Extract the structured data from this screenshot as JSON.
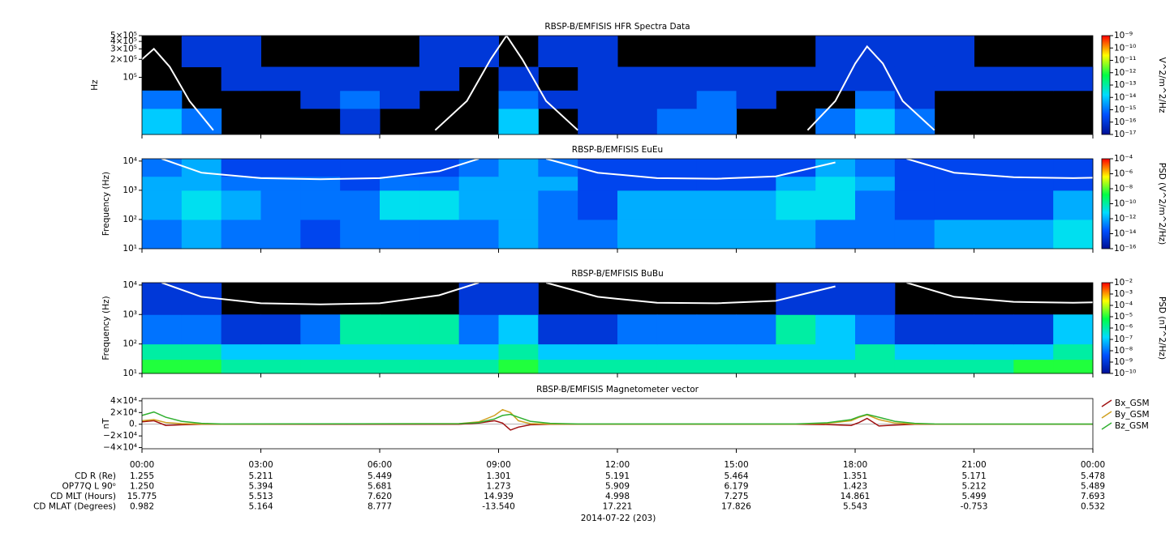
{
  "chart_data": [
    {
      "type": "spectrogram",
      "title": "RBSP-B/EMFISIS  HFR Spectra Data",
      "ylabel": "Hz",
      "ylog": true,
      "ylim": [
        11000,
        500000
      ],
      "yticks": [
        {
          "value": 500000,
          "label": "5×10⁵"
        },
        {
          "value": 400000,
          "label": "4×10⁵"
        },
        {
          "value": 300000,
          "label": "3×10⁵"
        },
        {
          "value": 200000,
          "label": "2×10⁵"
        },
        {
          "value": 100000,
          "label": "10⁵"
        }
      ],
      "zlabel": "V^2/m^2/Hz",
      "zlim": [
        1e-17,
        1e-09
      ],
      "zticks": [
        {
          "value": 1e-09,
          "label": "10⁻⁹"
        },
        {
          "value": 1e-10,
          "label": "10⁻¹⁰"
        },
        {
          "value": 1e-11,
          "label": "10⁻¹¹"
        },
        {
          "value": 1e-12,
          "label": "10⁻¹²"
        },
        {
          "value": 1e-13,
          "label": "10⁻¹³"
        },
        {
          "value": 1e-14,
          "label": "10⁻¹⁴"
        },
        {
          "value": 1e-15,
          "label": "10⁻¹⁵"
        },
        {
          "value": 1e-16,
          "label": "10⁻¹⁶"
        },
        {
          "value": 1e-17,
          "label": "10⁻¹⁷"
        }
      ],
      "xbins": [
        0,
        1,
        2,
        3,
        4,
        5,
        6,
        7,
        8,
        9,
        10,
        11,
        12,
        13,
        14,
        15,
        16,
        17,
        18,
        19,
        20,
        21,
        22,
        23,
        24
      ],
      "ybins": [
        11000,
        30000,
        60000,
        150000,
        500000
      ],
      "z": [
        [
          1e-14,
          1e-15,
          null,
          null,
          null,
          1e-16,
          null,
          null,
          null,
          1e-14,
          null,
          1e-16,
          1e-16,
          1e-15,
          1e-15,
          null,
          null,
          1e-15,
          1e-14,
          1e-15,
          null,
          null,
          null,
          null
        ],
        [
          1e-15,
          null,
          null,
          null,
          1e-16,
          1e-15,
          1e-16,
          null,
          null,
          1e-15,
          1e-16,
          1e-16,
          1e-16,
          1e-16,
          1e-15,
          1e-16,
          null,
          null,
          1e-15,
          1e-16,
          null,
          null,
          null,
          null
        ],
        [
          null,
          null,
          1e-16,
          1e-16,
          1e-16,
          1e-16,
          1e-16,
          1e-16,
          null,
          1e-16,
          null,
          1e-16,
          1e-16,
          1e-16,
          1e-16,
          1e-16,
          1e-16,
          1e-16,
          1e-16,
          1e-16,
          1e-16,
          1e-16,
          1e-16,
          1e-16
        ],
        [
          null,
          1e-16,
          1e-16,
          null,
          null,
          null,
          null,
          1e-16,
          1e-16,
          null,
          1e-16,
          1e-16,
          null,
          null,
          null,
          null,
          null,
          1e-16,
          1e-16,
          1e-16,
          1e-16,
          null,
          null,
          null
        ]
      ],
      "curve": {
        "x": [
          0,
          0.3,
          0.7,
          1.2,
          1.8,
          4,
          7.4,
          8.2,
          8.8,
          9.2,
          9.6,
          10.2,
          11,
          14,
          16.8,
          17.5,
          18,
          18.3,
          18.7,
          19.2,
          20
        ],
        "y": [
          200000,
          300000,
          150000,
          40000,
          13000,
          null,
          13000,
          40000,
          200000,
          500000,
          200000,
          40000,
          13000,
          null,
          13000,
          40000,
          170000,
          330000,
          170000,
          40000,
          13000
        ]
      }
    },
    {
      "type": "spectrogram",
      "title": "RBSP-B/EMFISIS  EuEu",
      "ylabel": "Frequency (Hz)",
      "ylog": true,
      "ylim": [
        10,
        12000
      ],
      "yticks": [
        {
          "value": 10,
          "label": "10¹"
        },
        {
          "value": 100,
          "label": "10²"
        },
        {
          "value": 1000,
          "label": "10³"
        },
        {
          "value": 10000,
          "label": "10⁴"
        }
      ],
      "zlabel": "PSD (V^2/m^2/Hz)",
      "zlim": [
        1e-16,
        0.0001
      ],
      "zticks": [
        {
          "value": 0.0001,
          "label": "10⁻⁴"
        },
        {
          "value": 1e-06,
          "label": "10⁻⁶"
        },
        {
          "value": 1e-08,
          "label": "10⁻⁸"
        },
        {
          "value": 1e-10,
          "label": "10⁻¹⁰"
        },
        {
          "value": 1e-12,
          "label": "10⁻¹²"
        },
        {
          "value": 1e-14,
          "label": "10⁻¹⁴"
        },
        {
          "value": 1e-16,
          "label": "10⁻¹⁶"
        }
      ],
      "xbins": [
        0,
        1,
        2,
        3,
        4,
        5,
        6,
        7,
        8,
        9,
        10,
        11,
        12,
        13,
        14,
        15,
        16,
        17,
        18,
        19,
        20,
        21,
        22,
        23,
        24
      ],
      "ybins": [
        10,
        100,
        1000,
        3000,
        12000
      ],
      "z": [
        [
          1e-13,
          1e-12,
          1e-13,
          1e-13,
          1e-14,
          1e-13,
          1e-13,
          1e-13,
          1e-13,
          1e-12,
          1e-13,
          1e-13,
          1e-12,
          1e-12,
          1e-12,
          1e-12,
          1e-12,
          1e-13,
          1e-13,
          1e-13,
          1e-12,
          1e-12,
          1e-12,
          1e-11
        ],
        [
          1e-12,
          1e-11,
          1e-12,
          1e-13,
          1e-13,
          1e-13,
          1e-11,
          1e-11,
          1e-12,
          1e-12,
          1e-13,
          1e-14,
          1e-12,
          1e-12,
          1e-12,
          1e-12,
          1e-11,
          1e-11,
          1e-13,
          1e-14,
          1e-14,
          1e-14,
          1e-14,
          1e-12
        ],
        [
          1e-12,
          1e-12,
          1e-13,
          1e-13,
          1e-13,
          1e-14,
          1e-13,
          1e-13,
          1e-12,
          1e-12,
          1e-12,
          1e-14,
          1e-14,
          1e-14,
          1e-14,
          1e-14,
          1e-12,
          1e-11,
          1e-12,
          1e-14,
          1e-14,
          1e-14,
          1e-14,
          1e-14
        ],
        [
          1e-13,
          1e-12,
          1e-14,
          1e-14,
          1e-14,
          1e-14,
          1e-14,
          1e-14,
          1e-13,
          1e-12,
          1e-13,
          1e-14,
          1e-14,
          1e-14,
          1e-14,
          1e-14,
          1e-14,
          1e-12,
          1e-13,
          1e-14,
          1e-14,
          1e-14,
          1e-14,
          1e-14
        ]
      ],
      "curve": {
        "x": [
          0.5,
          1.5,
          3,
          4.5,
          6,
          7.5,
          8.5,
          9.5,
          10.2,
          11.5,
          13,
          14.5,
          16,
          17.5,
          18,
          19.3,
          20.5,
          22,
          23.5,
          24
        ],
        "y": [
          12000,
          4000,
          2600,
          2400,
          2600,
          4500,
          12000,
          null,
          12000,
          4000,
          2600,
          2500,
          3000,
          9000,
          null,
          12000,
          4000,
          2800,
          2600,
          2700
        ]
      }
    },
    {
      "type": "spectrogram",
      "title": "RBSP-B/EMFISIS  BuBu",
      "ylabel": "Frequency (Hz)",
      "ylog": true,
      "ylim": [
        10,
        12000
      ],
      "yticks": [
        {
          "value": 10,
          "label": "10¹"
        },
        {
          "value": 100,
          "label": "10²"
        },
        {
          "value": 1000,
          "label": "10³"
        },
        {
          "value": 10000,
          "label": "10⁴"
        }
      ],
      "zlabel": "PSD (nT^2/Hz)",
      "zlim": [
        1e-10,
        0.01
      ],
      "zticks": [
        {
          "value": 0.01,
          "label": "10⁻²"
        },
        {
          "value": 0.001,
          "label": "10⁻³"
        },
        {
          "value": 0.0001,
          "label": "10⁻⁴"
        },
        {
          "value": 1e-05,
          "label": "10⁻⁵"
        },
        {
          "value": 1e-06,
          "label": "10⁻⁶"
        },
        {
          "value": 1e-07,
          "label": "10⁻⁷"
        },
        {
          "value": 1e-08,
          "label": "10⁻⁸"
        },
        {
          "value": 1e-09,
          "label": "10⁻⁹"
        },
        {
          "value": 1e-10,
          "label": "10⁻¹⁰"
        }
      ],
      "xbins": [
        0,
        1,
        2,
        3,
        4,
        5,
        6,
        7,
        8,
        9,
        10,
        11,
        12,
        13,
        14,
        15,
        16,
        17,
        18,
        19,
        20,
        21,
        22,
        23,
        24
      ],
      "ybins": [
        10,
        30,
        100,
        1000,
        12000
      ],
      "z": [
        [
          1e-05,
          1e-05,
          1e-06,
          1e-06,
          1e-06,
          1e-06,
          1e-06,
          1e-06,
          1e-06,
          1e-05,
          1e-06,
          1e-06,
          1e-06,
          1e-06,
          1e-06,
          1e-06,
          1e-06,
          1e-06,
          1e-06,
          1e-06,
          1e-06,
          1e-06,
          1e-05,
          1e-05
        ],
        [
          1e-06,
          1e-06,
          1e-07,
          1e-07,
          1e-07,
          1e-07,
          1e-07,
          1e-07,
          1e-07,
          1e-06,
          1e-07,
          1e-07,
          1e-07,
          1e-07,
          1e-07,
          1e-07,
          1e-07,
          1e-07,
          1e-06,
          1e-07,
          1e-07,
          1e-07,
          1e-07,
          1e-06
        ],
        [
          1e-08,
          1e-08,
          1e-09,
          1e-09,
          1e-08,
          1e-06,
          1e-06,
          1e-06,
          1e-08,
          1e-07,
          1e-09,
          1e-09,
          1e-08,
          1e-08,
          1e-08,
          1e-08,
          1e-06,
          1e-07,
          1e-08,
          1e-09,
          1e-09,
          1e-09,
          1e-09,
          1e-07
        ],
        [
          1e-09,
          1e-09,
          null,
          null,
          null,
          null,
          null,
          null,
          1e-09,
          1e-09,
          null,
          null,
          null,
          null,
          null,
          null,
          1e-09,
          1e-09,
          1e-09,
          null,
          null,
          null,
          null,
          null
        ]
      ],
      "curve": {
        "x": [
          0.5,
          1.5,
          3,
          4.5,
          6,
          7.5,
          8.5,
          9.5,
          10.2,
          11.5,
          13,
          14.5,
          16,
          17.5,
          18,
          19.3,
          20.5,
          22,
          23.5,
          24
        ],
        "y": [
          12000,
          4000,
          2400,
          2200,
          2400,
          4500,
          12000,
          null,
          12000,
          4000,
          2500,
          2400,
          2900,
          9000,
          null,
          12000,
          4000,
          2700,
          2500,
          2600
        ]
      }
    },
    {
      "type": "line",
      "title": "RBSP-B/EMFISIS  Magnetometer vector",
      "ylabel": "nT",
      "ylim": [
        -42000,
        44000
      ],
      "yticks": [
        {
          "value": 40000,
          "label": "4×10⁴"
        },
        {
          "value": 20000,
          "label": "2×10⁴"
        },
        {
          "value": 0,
          "label": "0."
        },
        {
          "value": -20000,
          "label": "−2×10⁴"
        },
        {
          "value": -40000,
          "label": "−4×10⁴"
        }
      ],
      "xlim": [
        0,
        24
      ],
      "xticks": [
        {
          "value": 0,
          "label": "00:00"
        },
        {
          "value": 3,
          "label": "03:00"
        },
        {
          "value": 6,
          "label": "06:00"
        },
        {
          "value": 9,
          "label": "09:00"
        },
        {
          "value": 12,
          "label": "12:00"
        },
        {
          "value": 15,
          "label": "15:00"
        },
        {
          "value": 18,
          "label": "18:00"
        },
        {
          "value": 21,
          "label": "21:00"
        },
        {
          "value": 24,
          "label": "00:00"
        }
      ],
      "x": [
        0,
        0.3,
        0.6,
        1,
        1.5,
        2,
        8,
        8.5,
        8.9,
        9.1,
        9.3,
        9.5,
        9.8,
        10.3,
        11,
        16.5,
        17.3,
        17.9,
        18.1,
        18.3,
        18.6,
        19,
        19.5,
        20,
        24
      ],
      "series": [
        {
          "name": "Bx_GSM",
          "color": "#a01010",
          "values": [
            4000,
            6000,
            -2000,
            -1000,
            0,
            0,
            0,
            2000,
            6000,
            2000,
            -10000,
            -5000,
            -1000,
            0,
            0,
            0,
            -500,
            -2000,
            3000,
            10000,
            -3000,
            -1500,
            0,
            0,
            0
          ]
        },
        {
          "name": "By_GSM",
          "color": "#d0a020",
          "values": [
            6000,
            8000,
            3000,
            1000,
            300,
            200,
            1000,
            4000,
            15000,
            25000,
            20000,
            6000,
            1000,
            300,
            200,
            200,
            1500,
            6000,
            12000,
            16000,
            8000,
            2000,
            500,
            200,
            100
          ]
        },
        {
          "name": "Bz_GSM",
          "color": "#30b030",
          "values": [
            15000,
            21000,
            12000,
            5000,
            1500,
            500,
            1000,
            3000,
            9000,
            15000,
            17000,
            12000,
            5000,
            1500,
            500,
            500,
            2500,
            8000,
            13000,
            17000,
            12000,
            5000,
            1500,
            500,
            300
          ]
        }
      ]
    }
  ],
  "ephemeris": [
    {
      "label": "CD R (Re)",
      "values": [
        "1.255",
        "5.211",
        "5.449",
        "1.301",
        "5.191",
        "5.464",
        "1.351",
        "5.171",
        "5.478"
      ]
    },
    {
      "label": "OP77Q L 90ᵒ",
      "values": [
        "1.250",
        "5.394",
        "5.681",
        "1.273",
        "5.909",
        "6.179",
        "1.423",
        "5.212",
        "5.489"
      ]
    },
    {
      "label": "CD MLT (Hours)",
      "values": [
        "15.775",
        "5.513",
        "7.620",
        "14.939",
        "4.998",
        "7.275",
        "14.861",
        "5.499",
        "7.693"
      ]
    },
    {
      "label": "CD MLAT (Degrees)",
      "values": [
        "0.982",
        "5.164",
        "8.777",
        "-13.540",
        "17.221",
        "17.826",
        "5.543",
        "-0.753",
        "0.532"
      ]
    }
  ],
  "date": "2014-07-22 (203)"
}
